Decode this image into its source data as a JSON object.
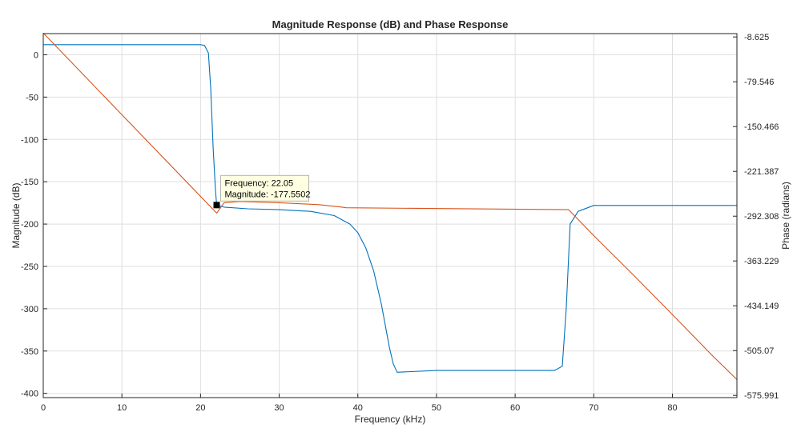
{
  "chart_data": {
    "type": "line",
    "title": "Magnitude Response (dB) and Phase Response",
    "xlabel": "Frequency (kHz)",
    "ylabel_left": "Magnitude (dB)",
    "ylabel_right": "Phase (radians)",
    "xlim": [
      0,
      88.2
    ],
    "ylim_left": [
      -405,
      25
    ],
    "ylim_right": [
      -579.5,
      -3.3
    ],
    "x_ticks": [
      0,
      10,
      20,
      30,
      40,
      50,
      60,
      70,
      80
    ],
    "x_tick_labels": [
      "0",
      "10",
      "20",
      "30",
      "40",
      "50",
      "60",
      "70",
      "80"
    ],
    "y_left_ticks": [
      0,
      -50,
      -100,
      -150,
      -200,
      -250,
      -300,
      -350,
      -400
    ],
    "y_left_tick_labels": [
      "0",
      "-50",
      "-100",
      "-150",
      "-200",
      "-250",
      "-300",
      "-350",
      "-400"
    ],
    "y_right_ticks": [
      -8.625,
      -79.546,
      -150.466,
      -221.387,
      -292.308,
      -363.229,
      -434.149,
      -505.07,
      -575.991
    ],
    "y_right_tick_labels": [
      "-8.625",
      "-79.546",
      "-150.466",
      "-221.387",
      "-292.308",
      "-363.229",
      "-434.149",
      "-505.07",
      "-575.991"
    ],
    "grid": true,
    "series": [
      {
        "axis": "left",
        "color": "#0072bd",
        "x": [
          0,
          20,
          20.5,
          21,
          21.3,
          21.6,
          21.9,
          22.05,
          23,
          26,
          30,
          34,
          37,
          39,
          40,
          41,
          42,
          43,
          44,
          44.5,
          45,
          50,
          55,
          60,
          65,
          66,
          66.5,
          67,
          68,
          70,
          75,
          80,
          85,
          88.2
        ],
        "y": [
          12,
          12,
          11,
          2,
          -40,
          -110,
          -160,
          -177.55,
          -180,
          -182,
          -183,
          -185,
          -190,
          -200,
          -210,
          -228,
          -255,
          -295,
          -345,
          -365,
          -375,
          -373,
          -373,
          -373,
          -373,
          -368,
          -300,
          -200,
          -185,
          -178,
          -178,
          -178,
          -178,
          -178
        ]
      },
      {
        "axis": "right",
        "color": "#d95319",
        "x": [
          0,
          22.05,
          23,
          25,
          30,
          35,
          38,
          38.5,
          66.8,
          70,
          75,
          80,
          85,
          88.2
        ],
        "y": [
          -2.4,
          -287.5,
          -271,
          -269,
          -271,
          -274,
          -278,
          -279,
          -282,
          -323,
          -385,
          -448,
          -512,
          -551
        ]
      }
    ],
    "annotations": [
      {
        "x": 22.05,
        "y": -177.5502,
        "lines": [
          "Frequency: 22.05",
          "Magnitude: -177.5502"
        ]
      }
    ]
  }
}
